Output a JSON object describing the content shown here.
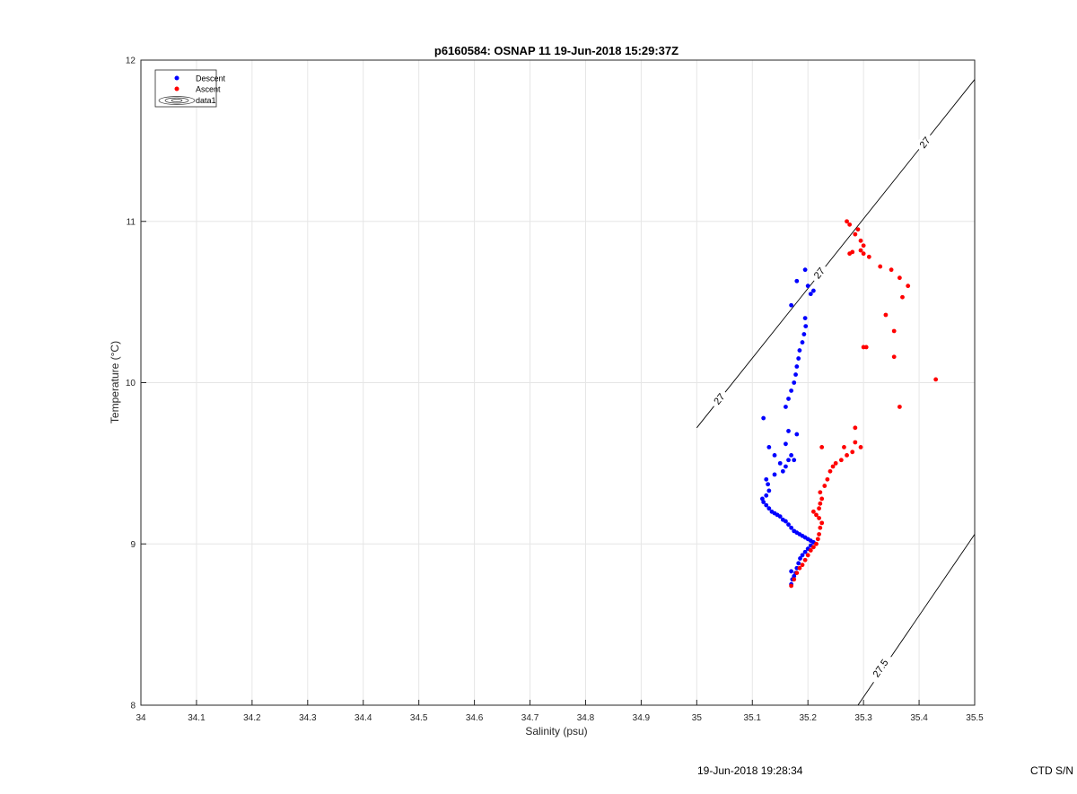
{
  "chart_data": {
    "type": "scatter",
    "title": "p6160584: OSNAP 11 19-Jun-2018 15:29:37Z",
    "xlabel": "Salinity (psu)",
    "ylabel": "Temperature (°C)",
    "xlim": [
      34,
      35.5
    ],
    "ylim": [
      8,
      12
    ],
    "x_ticks": [
      "34",
      "34.1",
      "34.2",
      "34.3",
      "34.4",
      "34.5",
      "34.6",
      "34.7",
      "34.8",
      "34.9",
      "35",
      "35.1",
      "35.2",
      "35.3",
      "35.4",
      "35.5"
    ],
    "y_ticks": [
      "8",
      "9",
      "10",
      "11",
      "12"
    ],
    "grid": true,
    "legend_position": "top-left",
    "legend": [
      "Descent",
      "Ascent",
      "data1"
    ],
    "series": [
      {
        "name": "Descent",
        "color": "#0000ff",
        "points": [
          [
            35.17,
            8.75
          ],
          [
            35.172,
            8.78
          ],
          [
            35.175,
            8.8
          ],
          [
            35.178,
            8.82
          ],
          [
            35.17,
            8.83
          ],
          [
            35.18,
            8.85
          ],
          [
            35.183,
            8.88
          ],
          [
            35.186,
            8.91
          ],
          [
            35.19,
            8.93
          ],
          [
            35.195,
            8.95
          ],
          [
            35.2,
            8.97
          ],
          [
            35.205,
            8.99
          ],
          [
            35.21,
            9.01
          ],
          [
            35.205,
            9.02
          ],
          [
            35.2,
            9.03
          ],
          [
            35.195,
            9.04
          ],
          [
            35.19,
            9.05
          ],
          [
            35.185,
            9.06
          ],
          [
            35.18,
            9.07
          ],
          [
            35.175,
            9.08
          ],
          [
            35.17,
            9.1
          ],
          [
            35.165,
            9.12
          ],
          [
            35.16,
            9.14
          ],
          [
            35.155,
            9.15
          ],
          [
            35.15,
            9.17
          ],
          [
            35.145,
            9.18
          ],
          [
            35.14,
            9.19
          ],
          [
            35.135,
            9.2
          ],
          [
            35.13,
            9.22
          ],
          [
            35.125,
            9.24
          ],
          [
            35.12,
            9.26
          ],
          [
            35.118,
            9.28
          ],
          [
            35.125,
            9.3
          ],
          [
            35.13,
            9.33
          ],
          [
            35.128,
            9.37
          ],
          [
            35.125,
            9.4
          ],
          [
            35.14,
            9.43
          ],
          [
            35.155,
            9.45
          ],
          [
            35.16,
            9.48
          ],
          [
            35.165,
            9.52
          ],
          [
            35.17,
            9.55
          ],
          [
            35.175,
            9.52
          ],
          [
            35.15,
            9.5
          ],
          [
            35.14,
            9.55
          ],
          [
            35.13,
            9.6
          ],
          [
            35.16,
            9.62
          ],
          [
            35.18,
            9.68
          ],
          [
            35.165,
            9.7
          ],
          [
            35.12,
            9.78
          ],
          [
            35.16,
            9.85
          ],
          [
            35.165,
            9.9
          ],
          [
            35.17,
            9.95
          ],
          [
            35.175,
            10.0
          ],
          [
            35.178,
            10.05
          ],
          [
            35.18,
            10.1
          ],
          [
            35.183,
            10.15
          ],
          [
            35.185,
            10.2
          ],
          [
            35.19,
            10.25
          ],
          [
            35.193,
            10.3
          ],
          [
            35.196,
            10.35
          ],
          [
            35.195,
            10.4
          ],
          [
            35.17,
            10.48
          ],
          [
            35.205,
            10.55
          ],
          [
            35.21,
            10.57
          ],
          [
            35.2,
            10.6
          ],
          [
            35.18,
            10.63
          ],
          [
            35.195,
            10.7
          ]
        ]
      },
      {
        "name": "Ascent",
        "color": "#ff0000",
        "points": [
          [
            35.17,
            8.74
          ],
          [
            35.175,
            8.78
          ],
          [
            35.18,
            8.82
          ],
          [
            35.185,
            8.85
          ],
          [
            35.19,
            8.87
          ],
          [
            35.195,
            8.9
          ],
          [
            35.2,
            8.93
          ],
          [
            35.205,
            8.96
          ],
          [
            35.21,
            8.98
          ],
          [
            35.215,
            9.0
          ],
          [
            35.218,
            9.03
          ],
          [
            35.22,
            9.06
          ],
          [
            35.222,
            9.1
          ],
          [
            35.225,
            9.13
          ],
          [
            35.22,
            9.16
          ],
          [
            35.215,
            9.18
          ],
          [
            35.21,
            9.2
          ],
          [
            35.22,
            9.22
          ],
          [
            35.222,
            9.25
          ],
          [
            35.225,
            9.28
          ],
          [
            35.222,
            9.32
          ],
          [
            35.23,
            9.36
          ],
          [
            35.235,
            9.4
          ],
          [
            35.24,
            9.45
          ],
          [
            35.245,
            9.48
          ],
          [
            35.25,
            9.5
          ],
          [
            35.26,
            9.52
          ],
          [
            35.27,
            9.55
          ],
          [
            35.28,
            9.57
          ],
          [
            35.265,
            9.6
          ],
          [
            35.225,
            9.6
          ],
          [
            35.285,
            9.63
          ],
          [
            35.295,
            9.6
          ],
          [
            35.285,
            9.72
          ],
          [
            35.3,
            10.22
          ],
          [
            35.305,
            10.22
          ],
          [
            35.34,
            10.42
          ],
          [
            35.355,
            10.32
          ],
          [
            35.355,
            10.16
          ],
          [
            35.365,
            9.85
          ],
          [
            35.43,
            10.02
          ],
          [
            35.37,
            10.53
          ],
          [
            35.38,
            10.6
          ],
          [
            35.365,
            10.65
          ],
          [
            35.33,
            10.72
          ],
          [
            35.35,
            10.7
          ],
          [
            35.31,
            10.78
          ],
          [
            35.3,
            10.8
          ],
          [
            35.295,
            10.82
          ],
          [
            35.28,
            10.81
          ],
          [
            35.275,
            10.8
          ],
          [
            35.3,
            10.85
          ],
          [
            35.295,
            10.88
          ],
          [
            35.285,
            10.92
          ],
          [
            35.29,
            10.95
          ],
          [
            35.275,
            10.98
          ],
          [
            35.27,
            11.0
          ]
        ]
      }
    ],
    "isopycnals": [
      {
        "label": "27",
        "from": [
          35.0,
          9.72
        ],
        "to": [
          35.5,
          11.88
        ],
        "label_positions": [
          [
            35.04,
            9.9
          ],
          [
            35.22,
            10.68
          ],
          [
            35.41,
            11.49
          ]
        ]
      },
      {
        "label": "27.5",
        "from": [
          35.29,
          8.0
        ],
        "to": [
          35.5,
          9.06
        ],
        "label_positions": [
          [
            35.33,
            8.23
          ]
        ]
      }
    ]
  },
  "footer": {
    "timestamp": "19-Jun-2018 19:28:34",
    "ctd": "CTD S/N"
  }
}
